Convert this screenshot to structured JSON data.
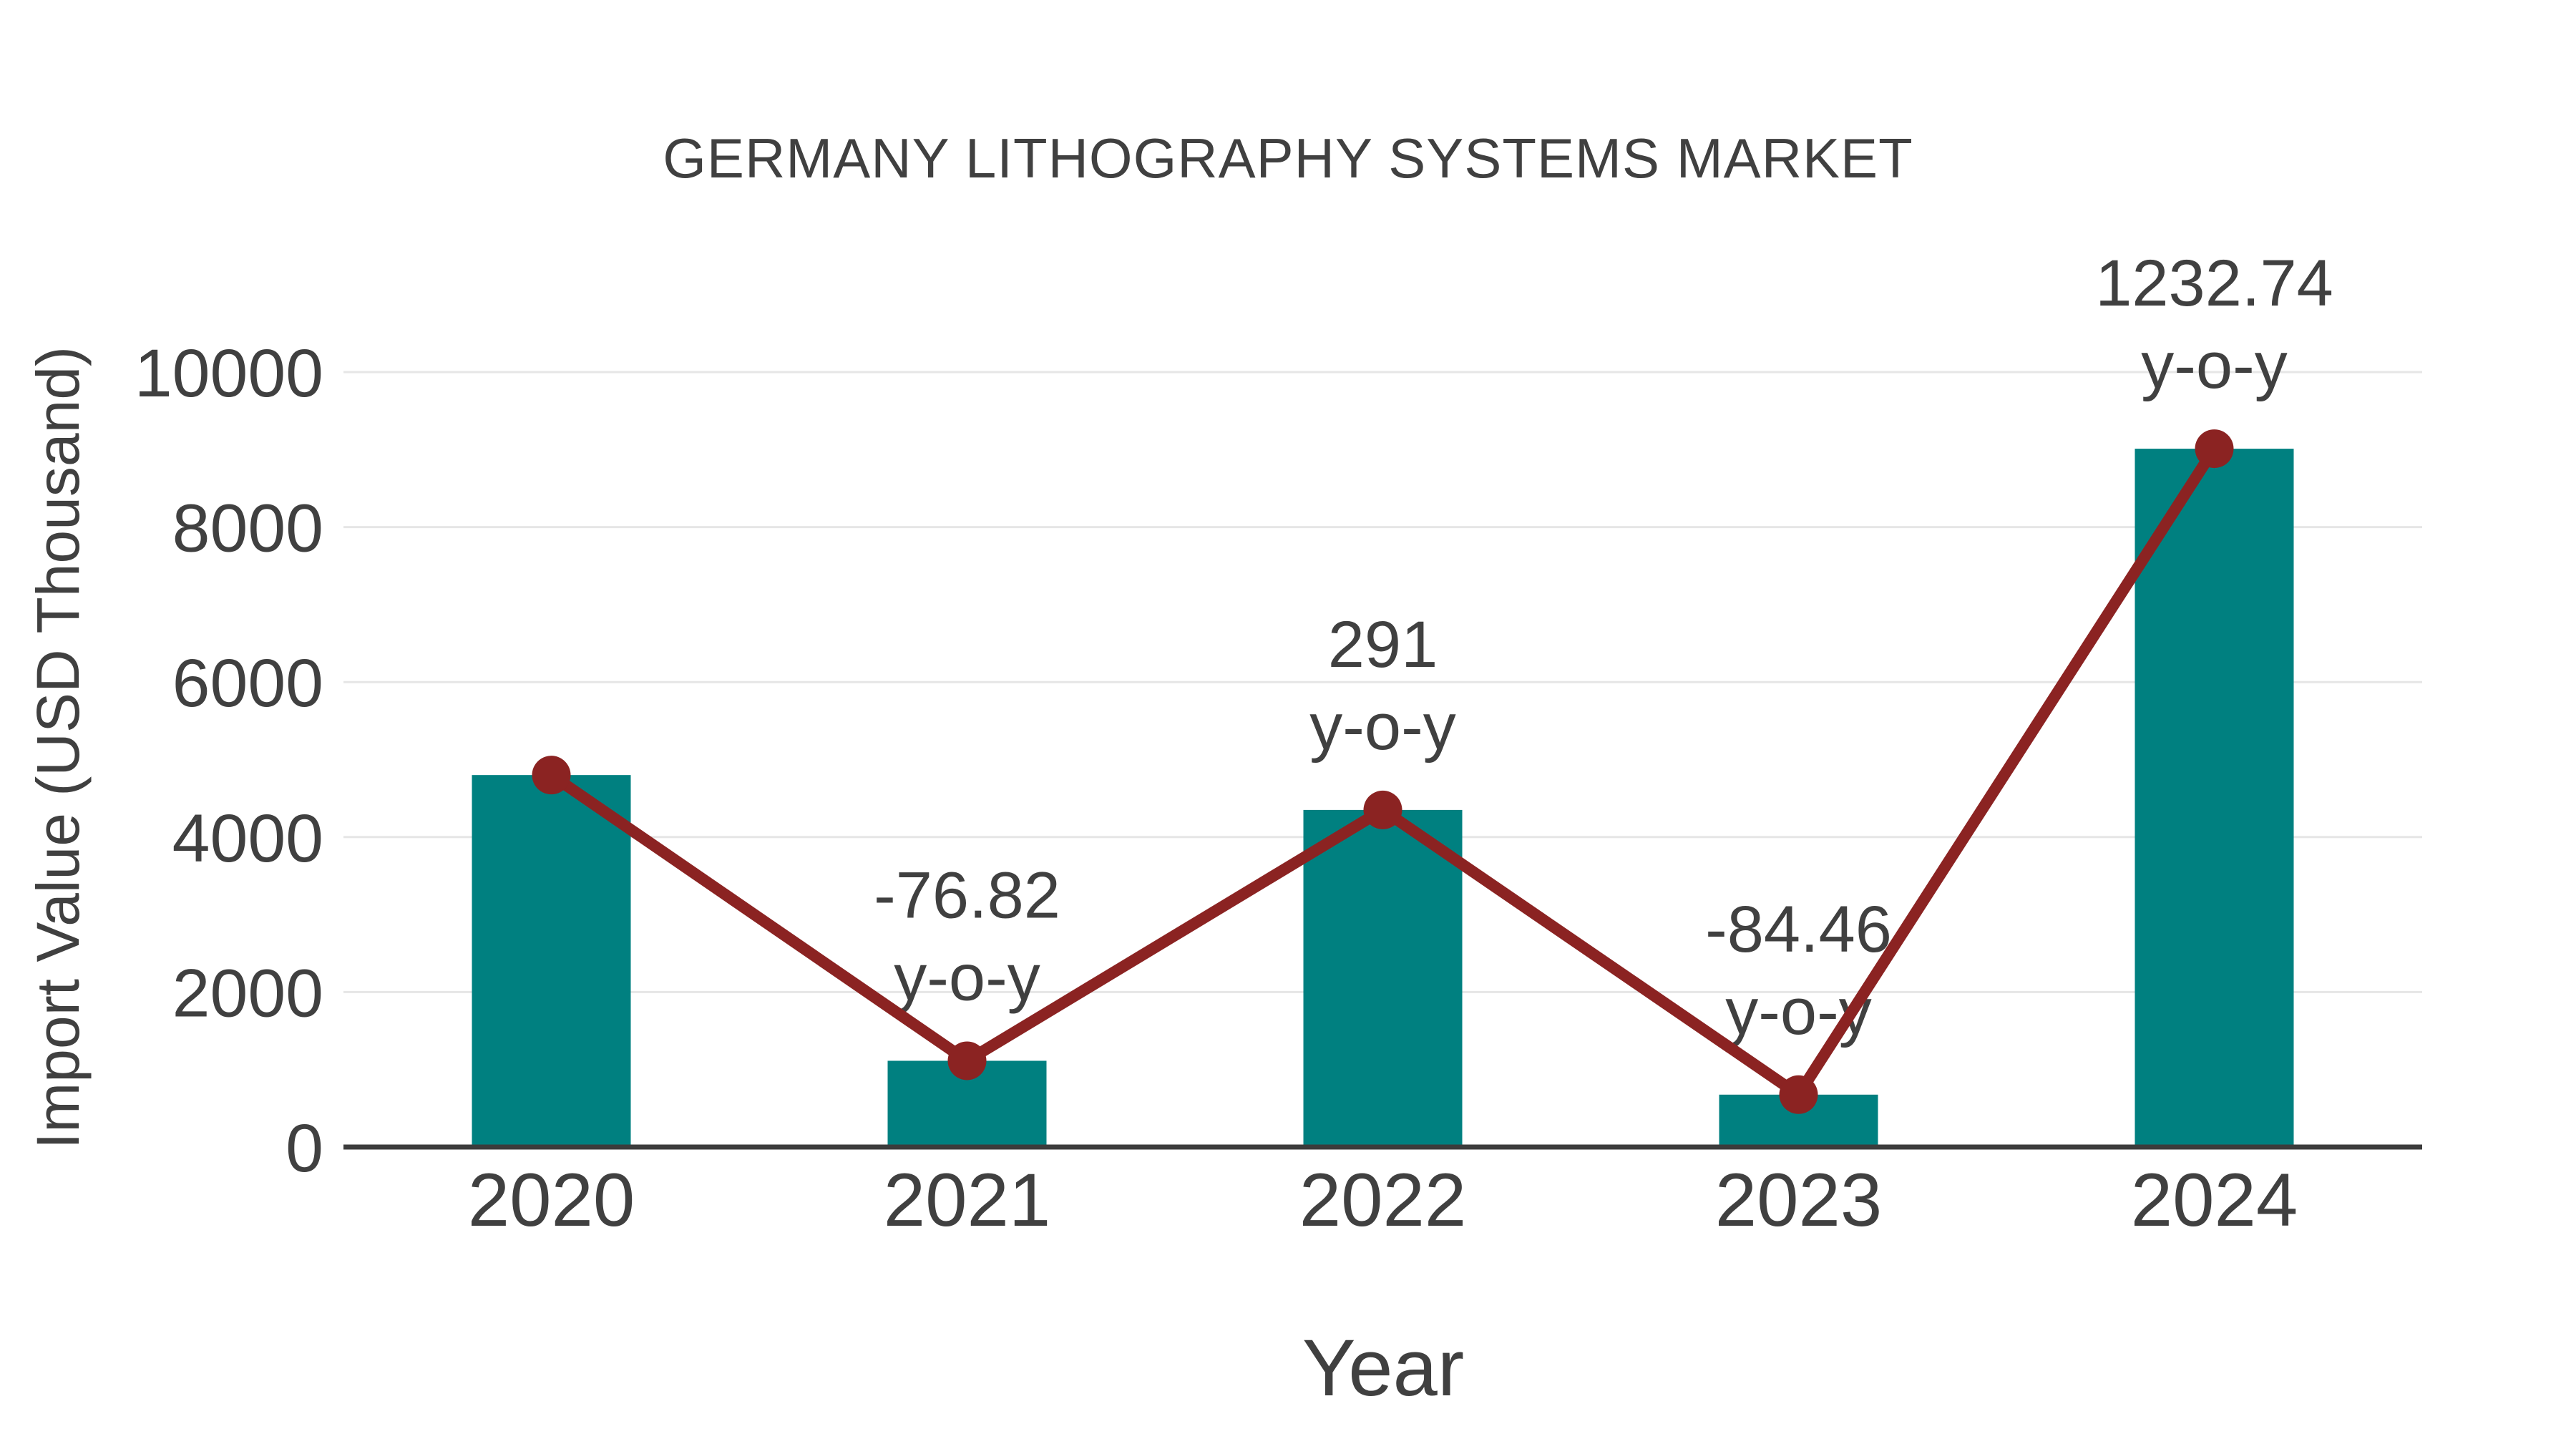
{
  "chart_data": {
    "type": "bar",
    "title": "GERMANY LITHOGRAPHY SYSTEMS MARKET",
    "xlabel": "Year",
    "ylabel": "Import Value (USD Thousand)",
    "categories": [
      "2020",
      "2021",
      "2022",
      "2023",
      "2024"
    ],
    "series": [
      {
        "type": "bar",
        "color": "#008080",
        "values": [
          4800,
          1113,
          4350,
          676,
          9011
        ]
      },
      {
        "type": "line",
        "color": "#8B2322",
        "values": [
          4800,
          1113,
          4350,
          676,
          9011
        ]
      }
    ],
    "annotations": [
      {
        "category": "2021",
        "value": "-76.82",
        "suffix": "y-o-y"
      },
      {
        "category": "2022",
        "value": "291",
        "suffix": "y-o-y"
      },
      {
        "category": "2023",
        "value": "-84.46",
        "suffix": "y-o-y"
      },
      {
        "category": "2024",
        "value": "1232.74",
        "suffix": "y-o-y"
      }
    ],
    "yticks": [
      0,
      2000,
      4000,
      6000,
      8000,
      10000
    ],
    "ylim": [
      0,
      10000
    ],
    "grid": true,
    "legend_position": "none",
    "colors": {
      "bar": "#008080",
      "line": "#8B2322",
      "marker": "#8B2322",
      "grid": "#E6E6E6",
      "axis": "#3C3C3C",
      "text": "#404040"
    }
  }
}
